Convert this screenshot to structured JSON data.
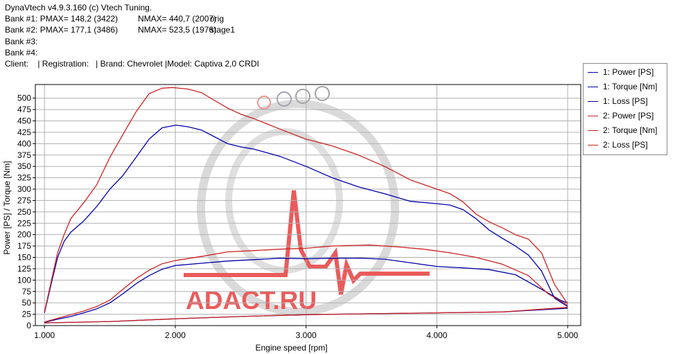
{
  "header": {
    "lines": [
      {
        "a": "DynaVtech v4.9.3.160 (c) Vtech Tuning.",
        "b": "",
        "c": ""
      },
      {
        "a": "Bank #1: PMAX= 148,2 (3422)",
        "b": "NMAX= 440,7 (2007)",
        "c": "orig"
      },
      {
        "a": "Bank #2: PMAX= 177,1 (3486)",
        "b": "NMAX= 523,5 (1976)",
        "c": "stage1"
      },
      {
        "a": "Bank #3:",
        "b": "",
        "c": ""
      },
      {
        "a": "Bank #4:",
        "b": "",
        "c": ""
      },
      {
        "a": "Client:    | Registration:   | Brand: Chevrolet |Model: Captiva 2,0 CRDI",
        "b": "",
        "c": ""
      }
    ]
  },
  "watermark": {
    "text": "ADACT.RU",
    "color": "#e84a4a"
  },
  "colors": {
    "bank1": "#0000aa",
    "bank2": "#cc2222",
    "grid": "#b0b0b0",
    "axis": "#000000"
  },
  "chart_data": {
    "type": "line",
    "xlabel": "Engine speed [rpm]",
    "ylabel": "Power [PS] / Torque [Nm]",
    "xlim": [
      930,
      5100
    ],
    "ylim": [
      0,
      530
    ],
    "xticks": [
      {
        "value": 1000,
        "label": "1.000"
      },
      {
        "value": 2000,
        "label": "2.000"
      },
      {
        "value": 3000,
        "label": "3.000"
      },
      {
        "value": 4000,
        "label": "4.000"
      },
      {
        "value": 5000,
        "label": "5.000"
      }
    ],
    "yticks": [
      0,
      25,
      50,
      75,
      100,
      125,
      150,
      175,
      200,
      225,
      250,
      275,
      300,
      325,
      350,
      375,
      400,
      425,
      450,
      475,
      500
    ],
    "grid": true,
    "legend_position": "right",
    "series": [
      {
        "name": "1: Power [PS]",
        "color": "#0000aa",
        "x": [
          1000,
          1100,
          1200,
          1300,
          1400,
          1500,
          1600,
          1700,
          1800,
          1900,
          2000,
          2200,
          2400,
          2600,
          2800,
          3000,
          3200,
          3422,
          3600,
          3800,
          4000,
          4200,
          4400,
          4600,
          4800,
          4950,
          5000
        ],
        "y": [
          7,
          14,
          20,
          28,
          37,
          50,
          70,
          92,
          110,
          124,
          132,
          137,
          142,
          145,
          148,
          147,
          148,
          148.2,
          146,
          138,
          130,
          127,
          123,
          112,
          80,
          55,
          50
        ]
      },
      {
        "name": "1: Torque [Nm]",
        "color": "#0000aa",
        "x": [
          1000,
          1050,
          1100,
          1150,
          1200,
          1300,
          1400,
          1500,
          1600,
          1700,
          1800,
          1900,
          2007,
          2100,
          2200,
          2300,
          2400,
          2500,
          2600,
          2800,
          3000,
          3200,
          3400,
          3600,
          3800,
          4000,
          4100,
          4200,
          4300,
          4400,
          4500,
          4600,
          4700,
          4800,
          4900,
          5000
        ],
        "y": [
          28,
          90,
          150,
          185,
          205,
          230,
          262,
          300,
          330,
          370,
          410,
          435,
          440.7,
          437,
          430,
          415,
          400,
          393,
          388,
          372,
          350,
          325,
          305,
          290,
          273,
          268,
          265,
          255,
          235,
          210,
          192,
          175,
          155,
          120,
          60,
          42
        ]
      },
      {
        "name": "1: Loss [PS]",
        "color": "#0000aa",
        "x": [
          1000,
          1500,
          2000,
          2500,
          3000,
          3500,
          4000,
          4500,
          5000
        ],
        "y": [
          6,
          9,
          15,
          20,
          24,
          26,
          28,
          30,
          38
        ]
      },
      {
        "name": "2: Power [PS]",
        "color": "#cc2222",
        "x": [
          1000,
          1100,
          1200,
          1300,
          1400,
          1500,
          1600,
          1700,
          1800,
          1900,
          2000,
          2200,
          2400,
          2600,
          2800,
          3000,
          3200,
          3486,
          3700,
          3900,
          4100,
          4300,
          4500,
          4700,
          4850,
          5000
        ],
        "y": [
          8,
          16,
          24,
          32,
          42,
          56,
          80,
          103,
          122,
          136,
          143,
          152,
          162,
          165,
          168,
          170,
          175,
          177.1,
          173,
          168,
          160,
          150,
          135,
          110,
          70,
          45
        ]
      },
      {
        "name": "2: Torque [Nm]",
        "color": "#cc2222",
        "x": [
          1000,
          1050,
          1100,
          1150,
          1200,
          1300,
          1400,
          1500,
          1600,
          1700,
          1800,
          1900,
          1976,
          2100,
          2200,
          2300,
          2400,
          2500,
          2600,
          2800,
          3000,
          3200,
          3400,
          3600,
          3800,
          4000,
          4100,
          4200,
          4300,
          4400,
          4500,
          4600,
          4700,
          4800,
          4900,
          5000
        ],
        "y": [
          30,
          95,
          160,
          200,
          235,
          270,
          310,
          370,
          420,
          470,
          510,
          522,
          523.5,
          520,
          512,
          495,
          478,
          465,
          455,
          432,
          410,
          395,
          375,
          350,
          320,
          300,
          290,
          272,
          245,
          228,
          215,
          200,
          190,
          160,
          90,
          48
        ]
      },
      {
        "name": "2: Loss [PS]",
        "color": "#cc2222",
        "x": [
          1000,
          1500,
          2000,
          2500,
          3000,
          3500,
          4000,
          4500,
          5000
        ],
        "y": [
          6,
          9,
          15,
          20,
          24,
          26,
          28,
          30,
          40
        ]
      }
    ]
  }
}
